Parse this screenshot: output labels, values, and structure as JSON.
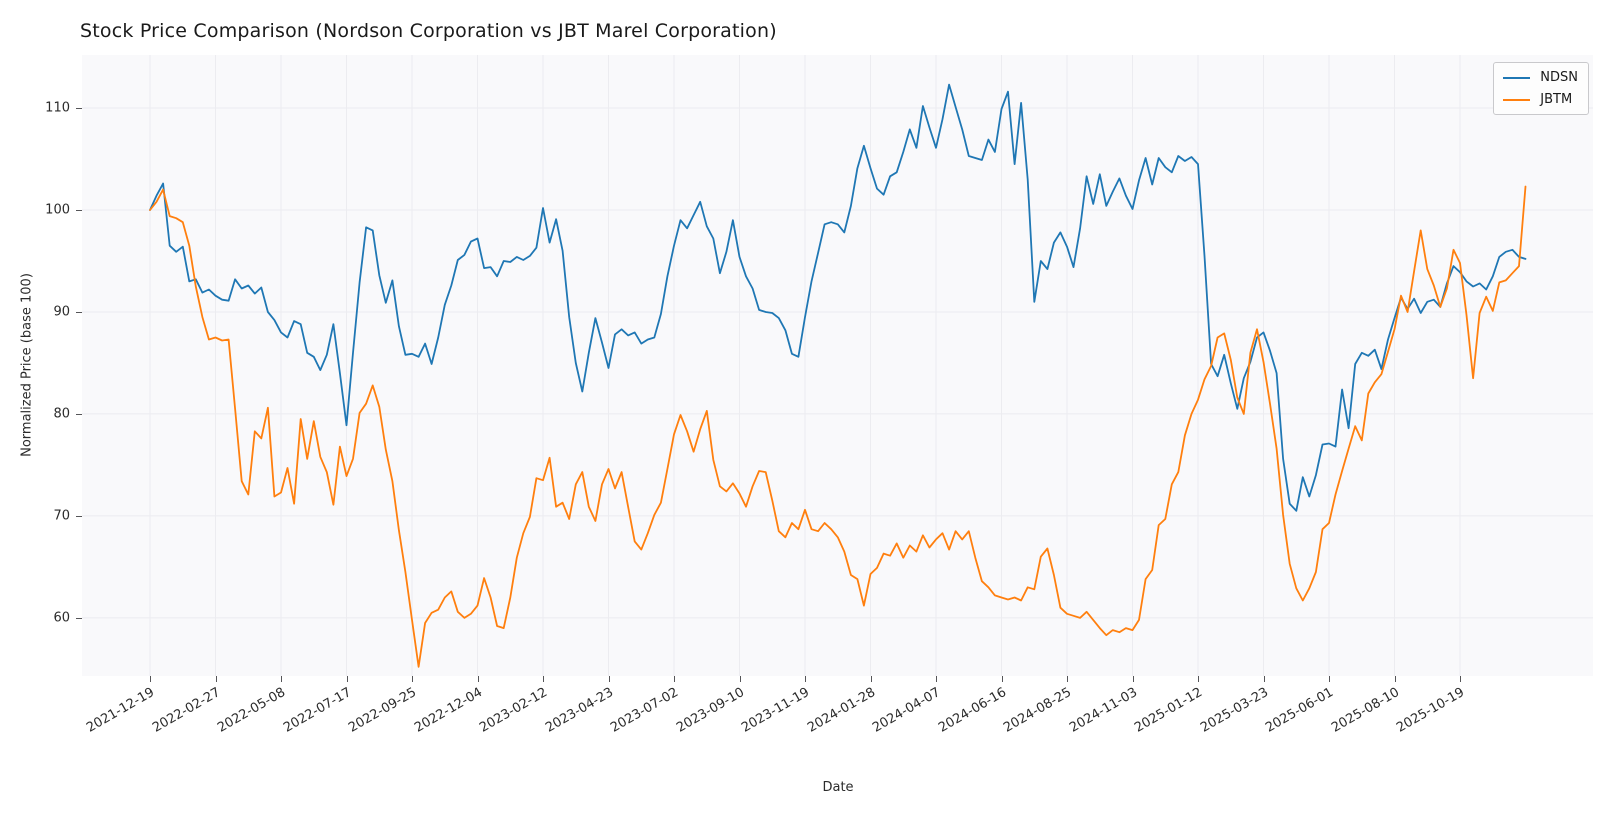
{
  "title": "Stock Price Comparison (Nordson Corporation vs JBT Marel Corporation)",
  "xlabel": "Date",
  "ylabel": "Normalized Price (base 100)",
  "legend": [
    {
      "label": "NDSN"
    },
    {
      "label": "JBTM"
    }
  ],
  "colors": {
    "ndsn_line": "#1f77b4",
    "jbtm_line": "#ff7f0e",
    "axes_background": "#f9f9fb",
    "gridline": "#ececf0"
  },
  "y_ticks": [
    60,
    70,
    80,
    90,
    100,
    110
  ],
  "x_tick_labels": [
    "2021-12-19",
    "2022-02-27",
    "2022-05-08",
    "2022-07-17",
    "2022-09-25",
    "2022-12-04",
    "2023-02-12",
    "2023-04-23",
    "2023-07-02",
    "2023-09-10",
    "2023-11-19",
    "2024-01-28",
    "2024-04-07",
    "2024-06-16",
    "2024-08-25",
    "2024-11-03",
    "2025-01-12",
    "2025-03-23",
    "2025-06-01",
    "2025-08-10",
    "2025-10-19"
  ],
  "chart_data": {
    "type": "line",
    "title": "Stock Price Comparison (Nordson Corporation vs JBT Marel Corporation)",
    "xlabel": "Date",
    "ylabel": "Normalized Price (base 100)",
    "x_tick_labels": [
      "2021-12-19",
      "2022-02-27",
      "2022-05-08",
      "2022-07-17",
      "2022-09-25",
      "2022-12-04",
      "2023-02-12",
      "2023-04-23",
      "2023-07-02",
      "2023-09-10",
      "2023-11-19",
      "2024-01-28",
      "2024-04-07",
      "2024-06-16",
      "2024-08-25",
      "2024-11-03",
      "2025-01-12",
      "2025-03-23",
      "2025-06-01",
      "2025-08-10",
      "2025-10-19"
    ],
    "x_start_date": "2021-12-19",
    "x_end_date": "2025-12-28",
    "x_interval_days": 7,
    "ylim": [
      54.3,
      115.2
    ],
    "grid": true,
    "legend_position": "upper right",
    "series": [
      {
        "name": "NDSN",
        "color": "#1f77b4",
        "values": [
          100.0,
          101.4,
          102.6,
          96.5,
          95.9,
          96.4,
          93.0,
          93.2,
          91.9,
          92.2,
          91.6,
          91.2,
          91.1,
          93.2,
          92.3,
          92.6,
          91.8,
          92.4,
          90.0,
          89.2,
          88.0,
          87.5,
          89.1,
          88.8,
          86.0,
          85.6,
          84.3,
          85.8,
          88.8,
          84.0,
          78.9,
          86.0,
          92.9,
          98.3,
          98.0,
          93.6,
          90.9,
          93.1,
          88.6,
          85.8,
          85.9,
          85.6,
          86.9,
          84.9,
          87.5,
          90.7,
          92.6,
          95.1,
          95.6,
          96.9,
          97.2,
          94.3,
          94.4,
          93.5,
          95.0,
          94.9,
          95.4,
          95.1,
          95.5,
          96.3,
          100.2,
          96.8,
          99.1,
          96.0,
          89.5,
          85.0,
          82.2,
          86.0,
          89.4,
          87.0,
          84.5,
          87.8,
          88.3,
          87.7,
          88.0,
          86.9,
          87.3,
          87.5,
          89.8,
          93.5,
          96.5,
          99.0,
          98.2,
          99.5,
          100.8,
          98.4,
          97.2,
          93.8,
          95.9,
          99.0,
          95.4,
          93.5,
          92.3,
          90.2,
          90.0,
          89.9,
          89.4,
          88.2,
          85.9,
          85.6,
          89.5,
          93.0,
          95.8,
          98.6,
          98.8,
          98.6,
          97.8,
          100.4,
          104.1,
          106.3,
          104.1,
          102.1,
          101.5,
          103.3,
          103.7,
          105.7,
          107.9,
          106.1,
          110.2,
          108.1,
          106.1,
          108.9,
          112.3,
          110.1,
          107.9,
          105.3,
          105.1,
          104.9,
          106.9,
          105.7,
          109.9,
          111.6,
          104.5,
          110.5,
          103.0,
          91.0,
          95.0,
          94.2,
          96.8,
          97.8,
          96.4,
          94.4,
          98.2,
          103.3,
          100.6,
          103.5,
          100.4,
          101.8,
          103.1,
          101.4,
          100.1,
          102.9,
          105.1,
          102.5,
          105.1,
          104.2,
          103.7,
          105.3,
          104.8,
          105.2,
          104.5,
          95.5,
          84.9,
          83.7,
          85.8,
          83.0,
          80.5,
          83.5,
          85.1,
          87.5,
          88.0,
          86.2,
          84.0,
          75.6,
          71.2,
          70.5,
          73.8,
          71.9,
          74.0,
          77.0,
          77.1,
          76.8,
          82.4,
          78.6,
          84.9,
          86.0,
          85.7,
          86.3,
          84.4,
          87.3,
          89.4,
          91.4,
          90.3,
          91.3,
          89.9,
          91.0,
          91.2,
          90.5,
          92.8,
          94.5,
          93.9,
          93.0,
          92.5,
          92.8,
          92.2,
          93.5,
          95.4,
          95.9,
          96.1,
          95.4,
          95.2
        ]
      },
      {
        "name": "JBTM",
        "color": "#ff7f0e",
        "values": [
          100.0,
          100.8,
          102.0,
          99.4,
          99.2,
          98.8,
          96.5,
          92.5,
          89.5,
          87.3,
          87.5,
          87.2,
          87.3,
          80.5,
          73.4,
          72.1,
          78.3,
          77.6,
          80.6,
          71.9,
          72.3,
          74.7,
          71.2,
          79.5,
          75.6,
          79.3,
          75.8,
          74.3,
          71.1,
          76.8,
          73.9,
          75.6,
          80.1,
          81.0,
          82.8,
          80.7,
          76.5,
          73.4,
          68.6,
          64.5,
          59.8,
          55.2,
          59.5,
          60.5,
          60.8,
          62.0,
          62.6,
          60.6,
          60.0,
          60.4,
          61.2,
          63.9,
          62.0,
          59.2,
          59.0,
          62.0,
          65.9,
          68.3,
          69.9,
          73.7,
          73.5,
          75.7,
          70.9,
          71.3,
          69.7,
          73.1,
          74.3,
          70.9,
          69.5,
          73.1,
          74.6,
          72.7,
          74.3,
          70.9,
          67.5,
          66.7,
          68.3,
          70.1,
          71.3,
          74.6,
          78.0,
          79.9,
          78.3,
          76.3,
          78.5,
          80.3,
          75.5,
          72.9,
          72.4,
          73.2,
          72.2,
          70.9,
          72.9,
          74.4,
          74.3,
          71.5,
          68.5,
          67.9,
          69.3,
          68.7,
          70.6,
          68.7,
          68.5,
          69.3,
          68.7,
          67.9,
          66.5,
          64.2,
          63.8,
          61.2,
          64.3,
          64.9,
          66.3,
          66.1,
          67.3,
          65.9,
          67.1,
          66.5,
          68.1,
          66.9,
          67.7,
          68.3,
          66.7,
          68.5,
          67.7,
          68.5,
          65.9,
          63.6,
          63.0,
          62.2,
          62.0,
          61.8,
          62.0,
          61.7,
          63.0,
          62.8,
          66.0,
          66.8,
          64.2,
          61.0,
          60.4,
          60.2,
          60.0,
          60.6,
          59.8,
          59.0,
          58.3,
          58.8,
          58.6,
          59.0,
          58.8,
          59.8,
          63.8,
          64.7,
          69.1,
          69.7,
          73.1,
          74.3,
          77.9,
          80.0,
          81.4,
          83.4,
          84.7,
          87.5,
          87.9,
          85.3,
          81.6,
          80.0,
          86.0,
          88.3,
          85.1,
          81.0,
          76.6,
          70.1,
          65.3,
          62.9,
          61.7,
          62.9,
          64.5,
          68.7,
          69.3,
          72.1,
          74.4,
          76.6,
          78.8,
          77.4,
          82.0,
          83.1,
          83.9,
          86.1,
          88.3,
          91.6,
          90.0,
          94.0,
          98.0,
          94.2,
          92.6,
          90.5,
          92.3,
          96.1,
          94.8,
          89.7,
          83.5,
          89.9,
          91.5,
          90.1,
          92.9,
          93.1,
          93.8,
          94.5,
          102.3
        ]
      }
    ]
  }
}
